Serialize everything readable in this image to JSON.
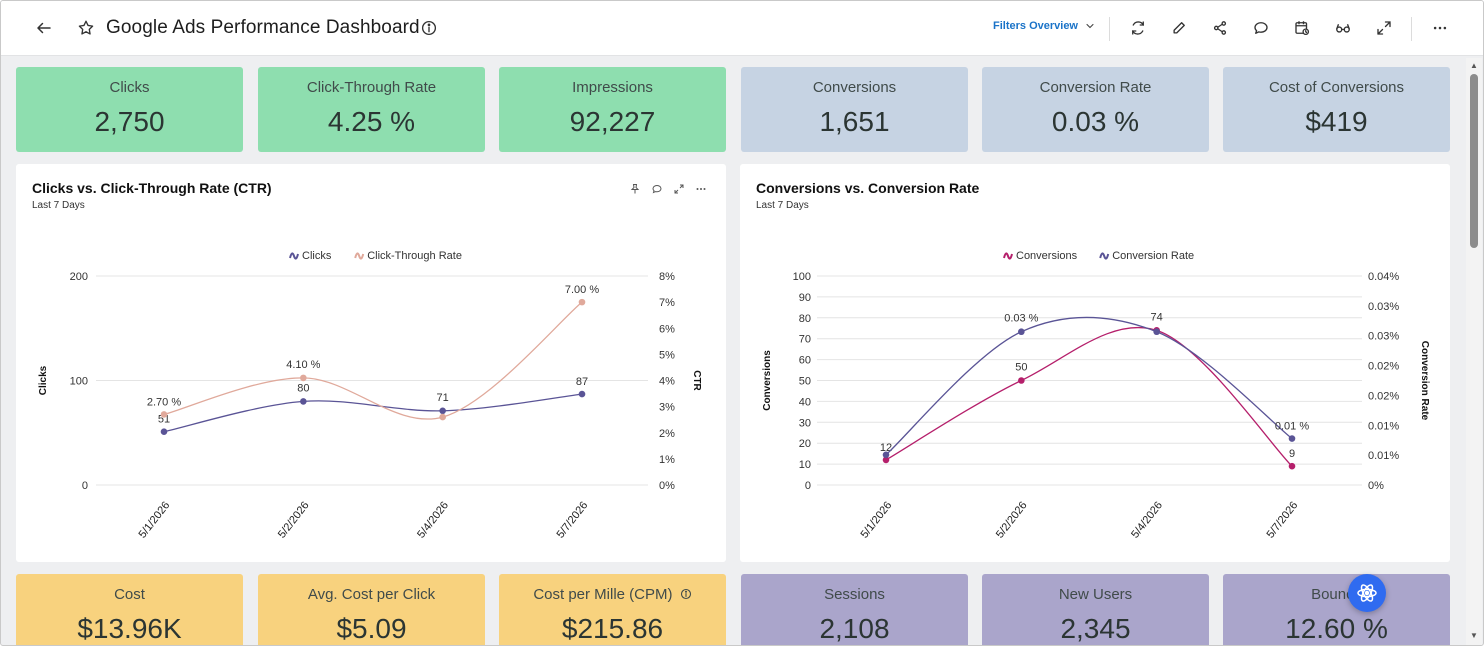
{
  "header": {
    "title": "Google Ads Performance Dashboard",
    "filters_label": "Filters Overview"
  },
  "kpis_top": [
    {
      "label": "Clicks",
      "value": "2,750",
      "color": "#8edeaf"
    },
    {
      "label": "Click-Through Rate",
      "value": "4.25 %",
      "color": "#8edeaf"
    },
    {
      "label": "Impressions",
      "value": "92,227",
      "color": "#8edeaf"
    },
    {
      "label": "Conversions",
      "value": "1,651",
      "color": "#c6d3e3"
    },
    {
      "label": "Conversion Rate",
      "value": "0.03 %",
      "color": "#c6d3e3"
    },
    {
      "label": "Cost of Conversions",
      "value": "$419",
      "color": "#c6d3e3"
    }
  ],
  "kpis_bottom": [
    {
      "label": "Cost",
      "value": "$13.96K",
      "color": "#f8d27e"
    },
    {
      "label": "Avg. Cost per Click",
      "value": "$5.09",
      "color": "#f8d27e"
    },
    {
      "label": "Cost per Mille (CPM)",
      "value": "$215.86",
      "color": "#f8d27e"
    },
    {
      "label": "Sessions",
      "value": "2,108",
      "color": "#aaa5cb"
    },
    {
      "label": "New Users",
      "value": "2,345",
      "color": "#aaa5cb"
    },
    {
      "label": "Bounce",
      "value": "12.60 %",
      "color": "#aaa5cb"
    }
  ],
  "chart_data": [
    {
      "type": "line",
      "title": "Clicks vs. Click-Through Rate (CTR)",
      "subtitle": "Last 7 Days",
      "x": [
        "5/1/2026",
        "5/2/2026",
        "5/4/2026",
        "5/7/2026"
      ],
      "series": [
        {
          "name": "Clicks",
          "values": [
            51,
            80,
            71,
            87
          ],
          "labels": [
            "51",
            "80",
            "71",
            "87"
          ],
          "axis": "left",
          "color": "#5a5496"
        },
        {
          "name": "Click-Through Rate",
          "values": [
            2.7,
            4.1,
            2.6,
            7.0
          ],
          "labels": [
            "2.70 %",
            "4.10 %",
            "",
            "7.00 %"
          ],
          "axis": "right",
          "color": "#e0a99b"
        }
      ],
      "ylabel": "Clicks",
      "y2label": "CTR",
      "ylim": [
        0,
        200
      ],
      "y2lim": [
        0,
        8
      ],
      "y_ticks": [
        "0",
        "100",
        "200"
      ],
      "y2_ticks": [
        "0%",
        "1%",
        "2%",
        "3%",
        "4%",
        "5%",
        "6%",
        "7%",
        "8%"
      ],
      "legend": "top-center"
    },
    {
      "type": "line",
      "title": "Conversions vs. Conversion Rate",
      "subtitle": "Last 7 Days",
      "x": [
        "5/1/2026",
        "5/2/2026",
        "5/4/2026",
        "5/7/2026"
      ],
      "series": [
        {
          "name": "Conversions",
          "values": [
            12,
            50,
            74,
            9
          ],
          "labels": [
            "12",
            "50",
            "74",
            "9"
          ],
          "axis": "left",
          "color": "#b51f6b"
        },
        {
          "name": "Conversion Rate",
          "values": [
            0.0065,
            0.033,
            0.033,
            0.01
          ],
          "labels": [
            "",
            "0.03 %",
            "",
            "0.01 %"
          ],
          "axis": "right",
          "color": "#5a5496"
        }
      ],
      "ylabel": "Conversions",
      "y2label": "Conversion Rate",
      "ylim": [
        0,
        100
      ],
      "y2lim": [
        0,
        0.045
      ],
      "y_ticks": [
        "0",
        "10",
        "20",
        "30",
        "40",
        "50",
        "60",
        "70",
        "80",
        "90",
        "100"
      ],
      "y2_ticks": [
        "0%",
        "0.01%",
        "0.01%",
        "0.02%",
        "0.02%",
        "0.03%",
        "0.03%",
        "0.04%"
      ],
      "legend": "top-center"
    }
  ]
}
